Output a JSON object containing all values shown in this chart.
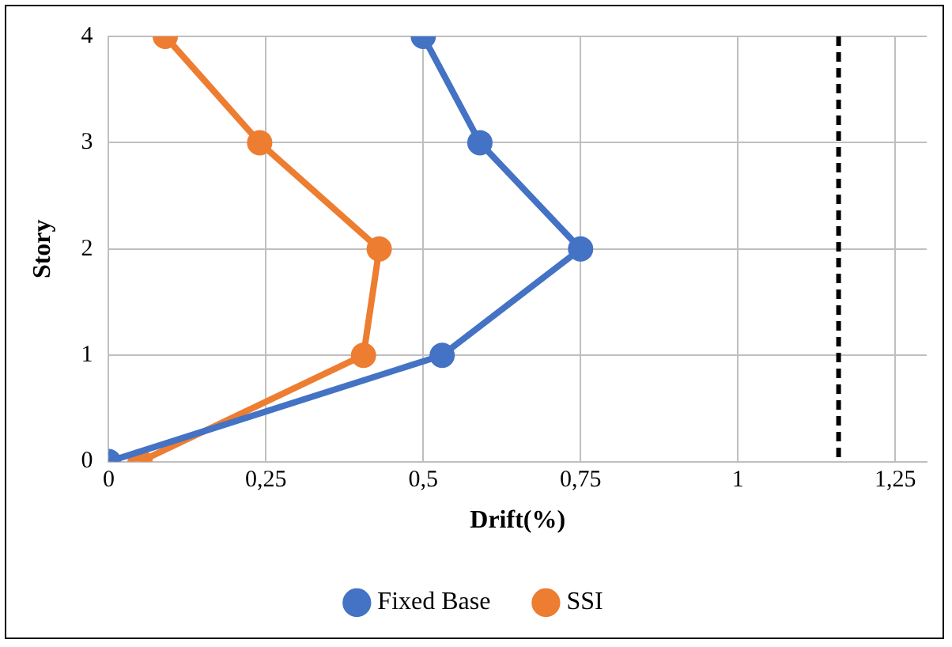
{
  "chart_data": {
    "type": "line",
    "xlabel": "Drift(%)",
    "ylabel": "Story",
    "series": [
      {
        "name": "Fixed Base",
        "color": "#4472c4",
        "x": [
          0,
          0.53,
          0.75,
          0.59,
          0.5
        ],
        "values": [
          0,
          1,
          2,
          3,
          4
        ]
      },
      {
        "name": "SSI",
        "color": "#ed7d31",
        "x": [
          0.05,
          0.405,
          0.43,
          0.24,
          0.09
        ],
        "values": [
          0,
          1,
          2,
          3,
          4
        ]
      }
    ],
    "xlim": [
      0,
      1.3
    ],
    "xticks": [
      0,
      {
        "value": 0.25,
        "label": "0,25"
      },
      {
        "value": 0.5,
        "label": "0,5"
      },
      {
        "value": 0.75,
        "label": "0,75"
      },
      1,
      {
        "value": 1.25,
        "label": "1,25"
      }
    ],
    "ylim": [
      0,
      4
    ],
    "yticks": [
      0,
      1,
      2,
      3,
      4
    ],
    "ref_lines": [
      {
        "axis": "x",
        "value": 1.16,
        "label": null,
        "color": "#000000",
        "line_style": "dashed"
      }
    ],
    "grid": true,
    "legend": "bottom",
    "marker": "circle",
    "line_style": "solid"
  }
}
